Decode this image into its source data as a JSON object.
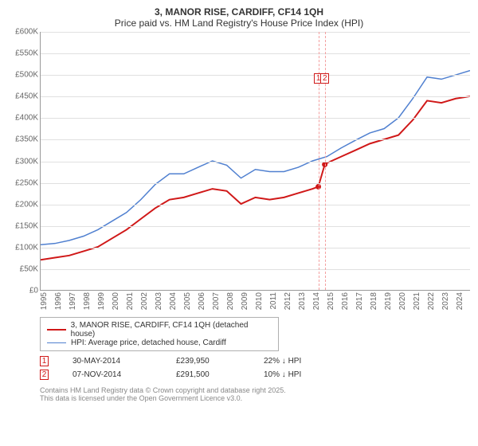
{
  "title": "3, MANOR RISE, CARDIFF, CF14 1QH",
  "subtitle": "Price paid vs. HM Land Registry's House Price Index (HPI)",
  "chart": {
    "type": "line",
    "background_color": "#ffffff",
    "grid_color": "#e0e0e0",
    "axis_color": "#999999",
    "ylim": [
      0,
      600000
    ],
    "ytick_step": 50000,
    "y_format": "£K",
    "yticks": [
      "£0",
      "£50K",
      "£100K",
      "£150K",
      "£200K",
      "£250K",
      "£300K",
      "£350K",
      "£400K",
      "£450K",
      "£500K",
      "£550K",
      "£600K"
    ],
    "xlim": [
      1995,
      2025
    ],
    "xticks": [
      1995,
      1996,
      1997,
      1998,
      1999,
      2000,
      2001,
      2002,
      2003,
      2004,
      2005,
      2006,
      2007,
      2008,
      2009,
      2010,
      2011,
      2012,
      2013,
      2014,
      2015,
      2016,
      2017,
      2018,
      2019,
      2020,
      2021,
      2022,
      2023,
      2024
    ],
    "label_fontsize": 10,
    "series": [
      {
        "name": "price_paid",
        "label": "3, MANOR RISE, CARDIFF, CF14 1QH (detached house)",
        "color": "#d01818",
        "line_width": 2,
        "x": [
          1995,
          1996,
          1997,
          1998,
          1999,
          2000,
          2001,
          2002,
          2003,
          2004,
          2005,
          2006,
          2007,
          2008,
          2009,
          2010,
          2011,
          2012,
          2013,
          2014,
          2014.4,
          2014.85,
          2015,
          2016,
          2017,
          2018,
          2019,
          2020,
          2021,
          2022,
          2023,
          2024,
          2025
        ],
        "y": [
          70000,
          75000,
          80000,
          90000,
          100000,
          120000,
          140000,
          165000,
          190000,
          210000,
          215000,
          225000,
          235000,
          230000,
          200000,
          215000,
          210000,
          215000,
          225000,
          235000,
          239950,
          291500,
          295000,
          310000,
          325000,
          340000,
          350000,
          360000,
          395000,
          440000,
          435000,
          445000,
          450000
        ]
      },
      {
        "name": "hpi",
        "label": "HPI: Average price, detached house, Cardiff",
        "color": "#5080d0",
        "line_width": 1.5,
        "x": [
          1995,
          1996,
          1997,
          1998,
          1999,
          2000,
          2001,
          2002,
          2003,
          2004,
          2005,
          2006,
          2007,
          2008,
          2009,
          2010,
          2011,
          2012,
          2013,
          2014,
          2015,
          2016,
          2017,
          2018,
          2019,
          2020,
          2021,
          2022,
          2023,
          2024,
          2025
        ],
        "y": [
          105000,
          108000,
          115000,
          125000,
          140000,
          160000,
          180000,
          210000,
          245000,
          270000,
          270000,
          285000,
          300000,
          290000,
          260000,
          280000,
          275000,
          275000,
          285000,
          300000,
          310000,
          330000,
          348000,
          365000,
          375000,
          400000,
          445000,
          495000,
          490000,
          500000,
          510000
        ]
      }
    ],
    "markers": [
      {
        "num": "1",
        "x": 2014.4,
        "y": 239950,
        "color": "#d01818"
      },
      {
        "num": "2",
        "x": 2014.85,
        "y": 291500,
        "color": "#d01818"
      }
    ]
  },
  "legend": {
    "border_color": "#b0b0b0",
    "items": [
      {
        "color": "#d01818",
        "width": 2,
        "label": "3, MANOR RISE, CARDIFF, CF14 1QH (detached house)"
      },
      {
        "color": "#5080d0",
        "width": 1.5,
        "label": "HPI: Average price, detached house, Cardiff"
      }
    ]
  },
  "transactions": [
    {
      "num": "1",
      "color": "#d01818",
      "date": "30-MAY-2014",
      "price": "£239,950",
      "diff": "22% ↓ HPI"
    },
    {
      "num": "2",
      "color": "#d01818",
      "date": "07-NOV-2014",
      "price": "£291,500",
      "diff": "10% ↓ HPI"
    }
  ],
  "footer": {
    "line1": "Contains HM Land Registry data © Crown copyright and database right 2025.",
    "line2": "This data is licensed under the Open Government Licence v3.0."
  }
}
